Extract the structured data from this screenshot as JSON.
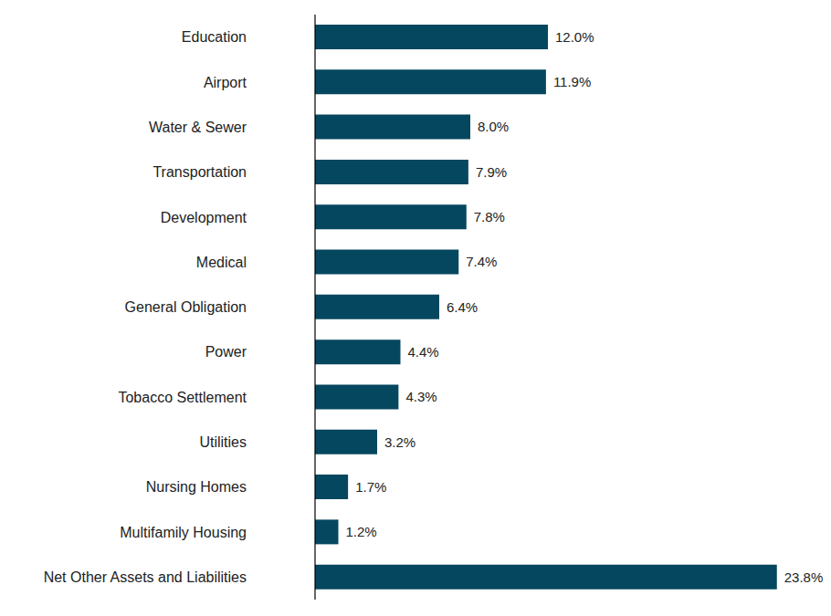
{
  "chart_data": {
    "type": "bar",
    "orientation": "horizontal",
    "categories": [
      "Education",
      "Airport",
      "Water & Sewer",
      "Transportation",
      "Development",
      "Medical",
      "General Obligation",
      "Power",
      "Tobacco Settlement",
      "Utilities",
      "Nursing Homes",
      "Multifamily Housing",
      "Net Other Assets and Liabilities"
    ],
    "values": [
      12.0,
      11.9,
      8.0,
      7.9,
      7.8,
      7.4,
      6.4,
      4.4,
      4.3,
      3.2,
      1.7,
      1.2,
      23.8
    ],
    "value_labels": [
      "12.0%",
      "11.9%",
      "8.0%",
      "7.9%",
      "7.8%",
      "7.4%",
      "6.4%",
      "4.4%",
      "4.3%",
      "3.2%",
      "1.7%",
      "1.2%",
      "23.8%"
    ],
    "color": "#05475e",
    "xlim": [
      0,
      24
    ],
    "data_labels": true,
    "tick_labels": "y",
    "grid": false
  }
}
